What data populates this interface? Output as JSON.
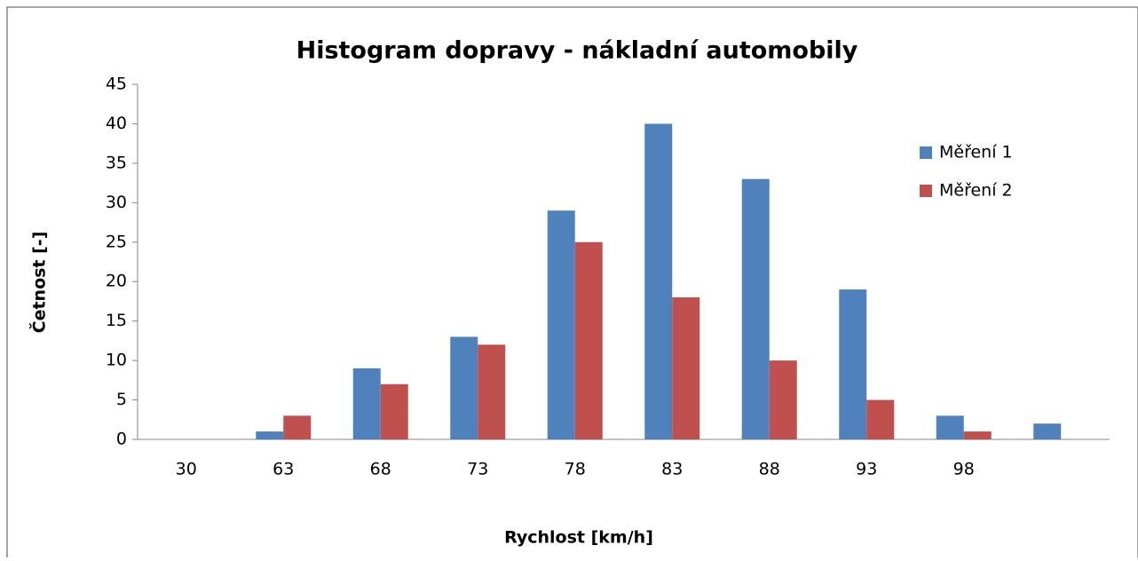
{
  "chart_data": {
    "type": "bar",
    "title": "Histogram dopravy - nákladní automobily",
    "x_label": "Rychlost [km/h]",
    "y_label": "Četnost [-]",
    "categories": [
      "30",
      "63",
      "68",
      "73",
      "78",
      "83",
      "88",
      "93",
      "98",
      null
    ],
    "series": [
      {
        "name": "Měření 1",
        "color": "#4f81bd",
        "values": [
          0,
          1,
          9,
          13,
          29,
          40,
          33,
          19,
          3,
          2
        ]
      },
      {
        "name": "Měření 2",
        "color": "#c0504d",
        "values": [
          0,
          3,
          7,
          12,
          25,
          18,
          10,
          5,
          1,
          0
        ]
      }
    ],
    "ylim": [
      0,
      45
    ],
    "yticks": [
      0,
      5,
      10,
      15,
      20,
      25,
      30,
      35,
      40,
      45
    ],
    "grid": false,
    "legend": "upper right"
  }
}
